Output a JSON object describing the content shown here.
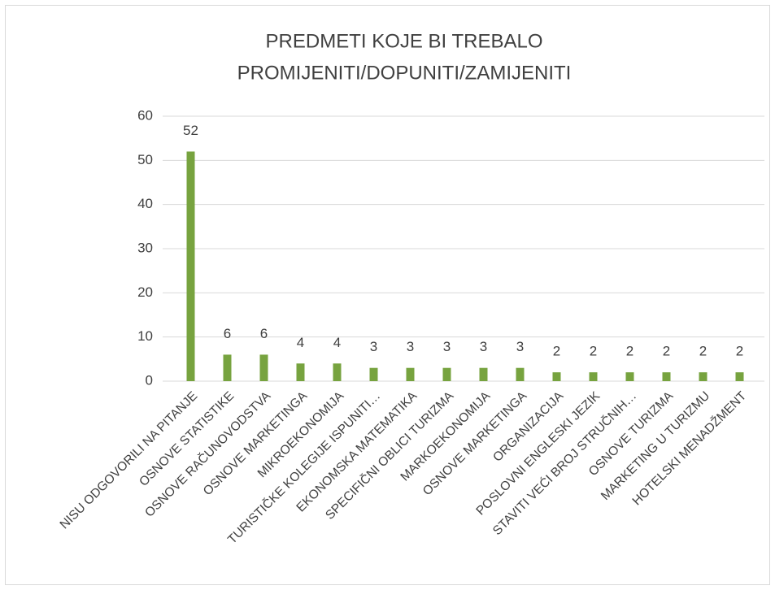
{
  "chart_data": {
    "type": "bar",
    "title": [
      "PREDMETI  KOJE BI TREBALO",
      "PROMIJENITI/DOPUNITI/ZAMIJENITI"
    ],
    "categories": [
      "NISU ODGOVORILI NA PITANJE",
      "OSNOVE STATISTIKE",
      "OSNOVE RAČUNOVODSTVA",
      "OSNOVE MARKETINGA",
      "MIKROEKONOMIJA",
      "TURISTIČKE KOLEGIJE ISPUNITI…",
      "EKONOMSKA MATEMATIKA",
      "SPECIFIČNI OBLICI TURIZMA",
      "MARKOEKONOMIJA",
      "OSNOVE MARKETINGA",
      "ORGANIZACIJA",
      "POSLOVNI ENGLESKI JEZIK",
      "STAVITI VEĆI BROJ STRUČNIH…",
      "OSNOVE TURIZMA",
      "MARKETING U TURIZMU",
      "HOTELSKI MENADŽMENT"
    ],
    "values": [
      52,
      6,
      6,
      4,
      4,
      3,
      3,
      3,
      3,
      3,
      2,
      2,
      2,
      2,
      2,
      2
    ],
    "color": "#77a33f",
    "ylim": [
      0,
      60
    ],
    "yticks": [
      0,
      10,
      20,
      30,
      40,
      50,
      60
    ],
    "grid": true
  }
}
